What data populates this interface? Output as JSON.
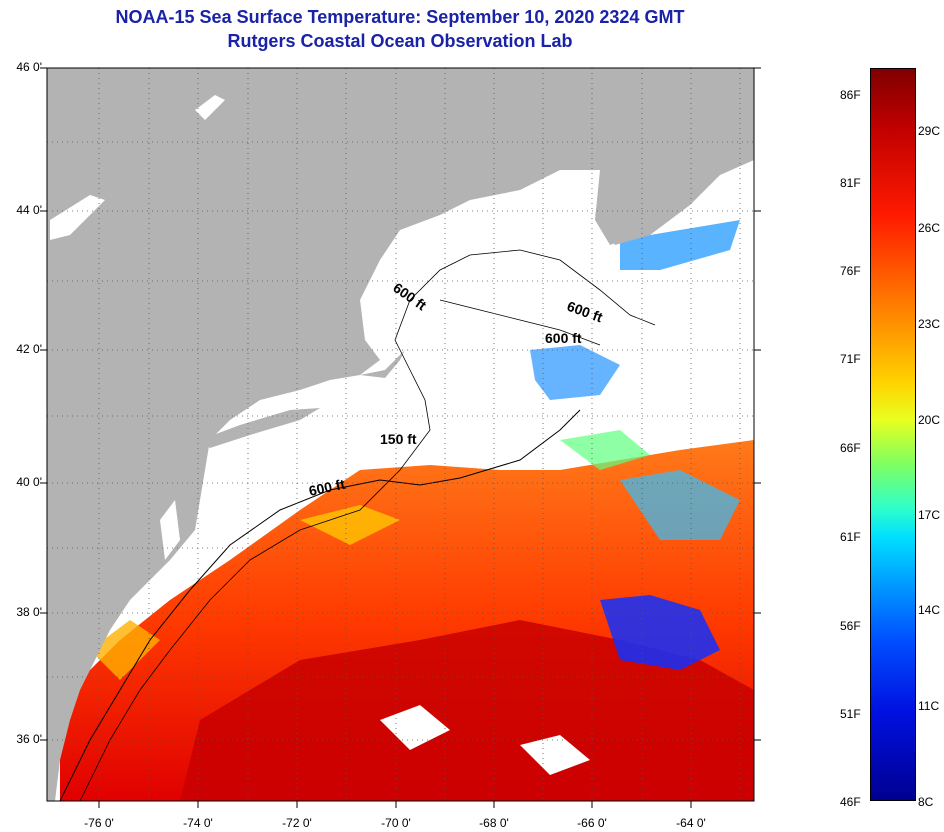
{
  "header": {
    "title": "NOAA-15 Sea Surface Temperature:  September 10, 2020 2324 GMT",
    "subtitle": "Rutgers Coastal Ocean Observation Lab"
  },
  "axes": {
    "lat_labels": [
      "46 0'",
      "44 0'",
      "42 0'",
      "40 0'",
      "38 0'",
      "36 0'"
    ],
    "lon_labels": [
      "-76 0'",
      "-74 0'",
      "-72 0'",
      "-70 0'",
      "-68 0'",
      "-66 0'",
      "-64 0'"
    ]
  },
  "contours": {
    "label_600_a": "600 ft",
    "label_600_b": "600 ft",
    "label_600_c": "600 ft",
    "label_150": "150 ft",
    "label_600_d": "600 ft"
  },
  "colorbar": {
    "f_labels": [
      "86F",
      "81F",
      "76F",
      "71F",
      "66F",
      "61F",
      "56F",
      "51F",
      "46F"
    ],
    "c_labels": [
      "29C",
      "26C",
      "23C",
      "20C",
      "17C",
      "14C",
      "11C",
      "8C"
    ]
  },
  "colors": {
    "land": "#b3b3b3",
    "no_data": "#ffffff",
    "title": "#1a22a8"
  }
}
